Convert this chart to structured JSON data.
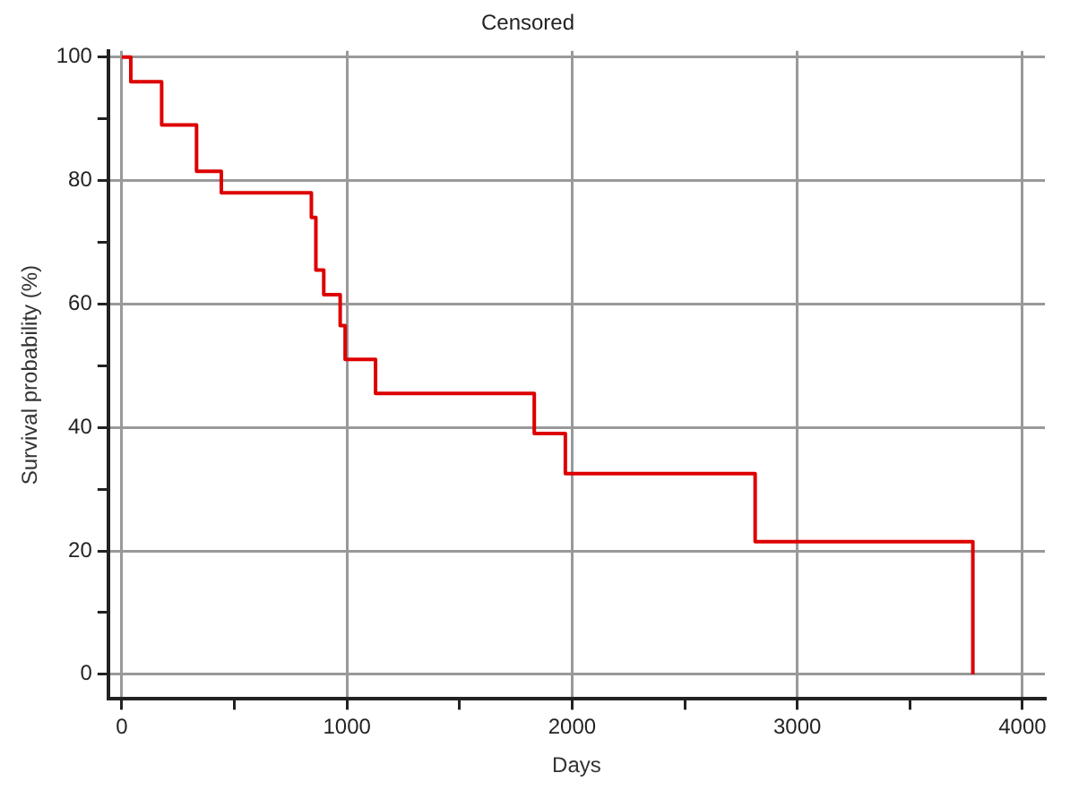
{
  "chart_data": {
    "type": "step",
    "title": "Censored",
    "xlabel": "Days",
    "ylabel": "Survival probability (%)",
    "x": [
      0,
      40,
      177,
      332,
      442,
      842,
      862,
      897,
      970,
      992,
      1127,
      1832,
      1970,
      2813,
      3780
    ],
    "series": [
      {
        "color": "#dd0000",
        "values": [
          100,
          96,
          89,
          81.5,
          78,
          74,
          65.5,
          61.5,
          56.5,
          51,
          45.5,
          39,
          32.5,
          21.5,
          0
        ]
      }
    ],
    "xlim": [
      -60,
      4100
    ],
    "ylim": [
      -4,
      101
    ],
    "xticks": [
      0,
      {
        "value": 500,
        "label": null
      },
      1000,
      {
        "value": 1500,
        "label": null
      },
      2000,
      {
        "value": 2500,
        "label": null
      },
      3000,
      {
        "value": 3500,
        "label": null
      },
      4000
    ],
    "yticks": [
      0,
      {
        "value": 10,
        "label": null
      },
      20,
      {
        "value": 30,
        "label": null
      },
      40,
      {
        "value": 50,
        "label": null
      },
      60,
      {
        "value": 70,
        "label": null
      },
      80,
      {
        "value": 90,
        "label": null
      },
      100
    ],
    "grid": true,
    "legend": false,
    "marker": "none",
    "line_style": "solid"
  }
}
